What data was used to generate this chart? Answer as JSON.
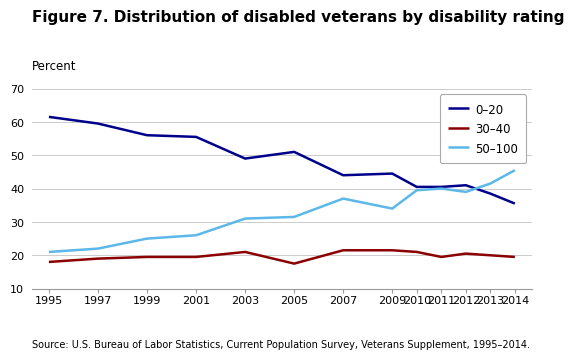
{
  "title": "Figure 7. Distribution of disabled veterans by disability rating",
  "ylabel": "Percent",
  "source": "Source: U.S. Bureau of Labor Statistics, Current Population Survey, Veterans Supplement, 1995–2014.",
  "years": [
    1995,
    1997,
    1999,
    2001,
    2003,
    2005,
    2007,
    2009,
    2010,
    2011,
    2012,
    2013,
    2014
  ],
  "series": [
    {
      "label": "0–20",
      "color": "#00008B",
      "linewidth": 1.8,
      "values": [
        61.5,
        59.5,
        56.0,
        55.5,
        49.0,
        51.0,
        44.0,
        44.5,
        40.5,
        40.5,
        41.0,
        38.5,
        35.5
      ]
    },
    {
      "label": "30–40",
      "color": "#8B0000",
      "linewidth": 1.8,
      "values": [
        18.0,
        19.0,
        19.5,
        19.5,
        21.0,
        17.5,
        21.5,
        21.5,
        21.0,
        19.5,
        20.5,
        20.0,
        19.5
      ]
    },
    {
      "label": "50–100",
      "color": "#5BB8E8",
      "linewidth": 1.8,
      "values": [
        21.0,
        22.0,
        25.0,
        26.0,
        31.0,
        31.5,
        37.0,
        34.0,
        39.5,
        40.0,
        39.0,
        41.5,
        45.5
      ]
    }
  ],
  "ylim": [
    10,
    70
  ],
  "yticks": [
    10,
    20,
    30,
    40,
    50,
    60,
    70
  ],
  "xticks": [
    1995,
    1997,
    1999,
    2001,
    2003,
    2005,
    2007,
    2009,
    2010,
    2011,
    2012,
    2013,
    2014
  ],
  "background_color": "#ffffff",
  "grid_color": "#cccccc",
  "title_fontsize": 11,
  "ylabel_fontsize": 8.5,
  "tick_fontsize": 8,
  "legend_fontsize": 8.5,
  "source_fontsize": 7,
  "xlim_left": 1994.3,
  "xlim_right": 2014.7
}
